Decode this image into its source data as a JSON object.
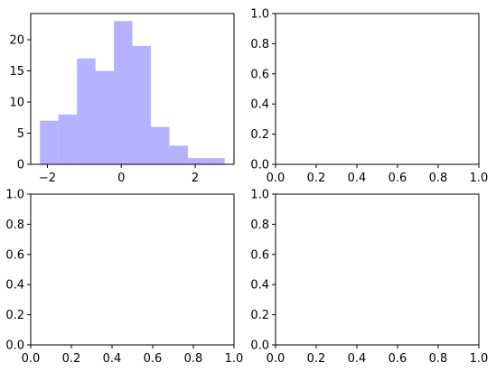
{
  "chart_data": [
    {
      "type": "bar",
      "subtype": "histogram",
      "color": "#b3b3ff",
      "bins": [
        {
          "x0": -2.2,
          "x1": -1.7,
          "count": 7
        },
        {
          "x0": -1.7,
          "x1": -1.2,
          "count": 8
        },
        {
          "x0": -1.2,
          "x1": -0.7,
          "count": 17
        },
        {
          "x0": -0.7,
          "x1": -0.2,
          "count": 15
        },
        {
          "x0": -0.2,
          "x1": 0.3,
          "count": 23
        },
        {
          "x0": 0.3,
          "x1": 0.8,
          "count": 19
        },
        {
          "x0": 0.8,
          "x1": 1.3,
          "count": 6
        },
        {
          "x0": 1.3,
          "x1": 1.8,
          "count": 3
        },
        {
          "x0": 1.8,
          "x1": 2.3,
          "count": 1
        },
        {
          "x0": 2.3,
          "x1": 2.8,
          "count": 1
        }
      ],
      "xlim": [
        -2.45,
        3.05
      ],
      "ylim": [
        0,
        24.2
      ],
      "xticks": [
        -2,
        0,
        2
      ],
      "xtick_labels": [
        "−2",
        "0",
        "2"
      ],
      "yticks": [
        0,
        5,
        10,
        15,
        20
      ],
      "ytick_labels": [
        "0",
        "5",
        "10",
        "15",
        "20"
      ],
      "title": "",
      "xlabel": "",
      "ylabel": ""
    },
    {
      "type": "empty",
      "xlim": [
        0,
        1
      ],
      "ylim": [
        0,
        1
      ],
      "xticks": [
        0,
        0.2,
        0.4,
        0.6,
        0.8,
        1.0
      ],
      "xtick_labels": [
        "0.0",
        "0.2",
        "0.4",
        "0.6",
        "0.8",
        "1.0"
      ],
      "yticks": [
        0,
        0.2,
        0.4,
        0.6,
        0.8,
        1.0
      ],
      "ytick_labels": [
        "0.0",
        "0.2",
        "0.4",
        "0.6",
        "0.8",
        "1.0"
      ],
      "title": "",
      "xlabel": "",
      "ylabel": ""
    },
    {
      "type": "empty",
      "xlim": [
        0,
        1
      ],
      "ylim": [
        0,
        1
      ],
      "xticks": [
        0,
        0.2,
        0.4,
        0.6,
        0.8,
        1.0
      ],
      "xtick_labels": [
        "0.0",
        "0.2",
        "0.4",
        "0.6",
        "0.8",
        "1.0"
      ],
      "yticks": [
        0,
        0.2,
        0.4,
        0.6,
        0.8,
        1.0
      ],
      "ytick_labels": [
        "0.0",
        "0.2",
        "0.4",
        "0.6",
        "0.8",
        "1.0"
      ],
      "title": "",
      "xlabel": "",
      "ylabel": ""
    },
    {
      "type": "empty",
      "xlim": [
        0,
        1
      ],
      "ylim": [
        0,
        1
      ],
      "xticks": [
        0,
        0.2,
        0.4,
        0.6,
        0.8,
        1.0
      ],
      "xtick_labels": [
        "0.0",
        "0.2",
        "0.4",
        "0.6",
        "0.8",
        "1.0"
      ],
      "yticks": [
        0,
        0.2,
        0.4,
        0.6,
        0.8,
        1.0
      ],
      "ytick_labels": [
        "0.0",
        "0.2",
        "0.4",
        "0.6",
        "0.8",
        "1.0"
      ],
      "title": "",
      "xlabel": "",
      "ylabel": ""
    }
  ]
}
